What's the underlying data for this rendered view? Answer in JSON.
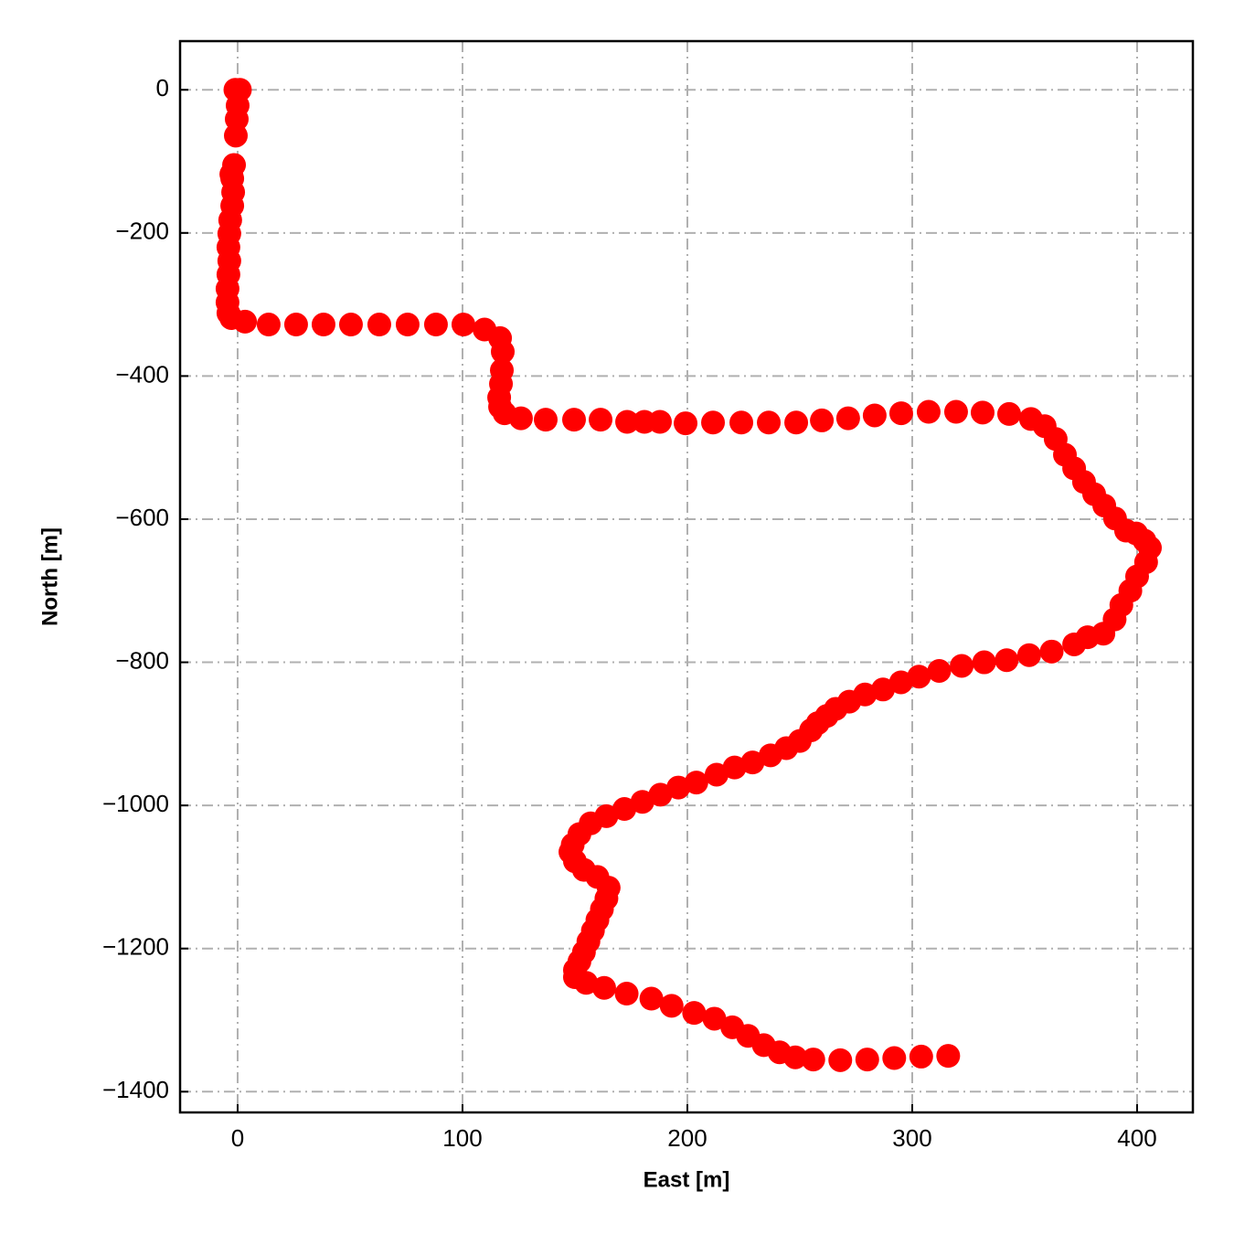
{
  "chart_data": {
    "type": "scatter",
    "xlabel": "East [m]",
    "ylabel": "North [m]",
    "color": "#ff0000",
    "grid": true,
    "xlim": [
      -25.6,
      424.8
    ],
    "ylim": [
      -1429,
      68
    ],
    "xticks": [
      0,
      100,
      200,
      300,
      400
    ],
    "yticks": [
      0,
      {
        "value": -200,
        "label": "−200"
      },
      {
        "value": -400,
        "label": "−400"
      },
      {
        "value": -600,
        "label": "−600"
      },
      {
        "value": -800,
        "label": "−800"
      },
      {
        "value": -1000,
        "label": "−1000"
      },
      {
        "value": -1200,
        "label": "−1200"
      },
      {
        "value": -1400,
        "label": "−1400"
      }
    ],
    "x": [
      -1,
      1,
      0,
      -0.4,
      -0.8,
      -1.6,
      -2.8,
      -2.4,
      -2,
      -2.4,
      -3.3,
      -3.7,
      -4.1,
      -3.7,
      -4.1,
      -4.5,
      -4.5,
      -4.1,
      -2.8,
      3.3,
      13.8,
      26,
      38.2,
      50.4,
      63,
      75.6,
      88.2,
      100.4,
      109.8,
      116.7,
      117.9,
      117.5,
      117.1,
      116.3,
      116.7,
      118.7,
      126,
      137,
      149.6,
      161.4,
      173.2,
      180.9,
      187.8,
      199.2,
      211.4,
      224,
      236.2,
      248.4,
      259.8,
      271.5,
      283.3,
      295.1,
      307.3,
      319.5,
      331.3,
      343.1,
      352.8,
      358.9,
      363.8,
      367.9,
      372,
      376.4,
      380.9,
      385.4,
      390.2,
      395.1,
      399.6,
      403.3,
      405.7,
      404,
      400,
      397,
      393,
      390,
      385,
      378,
      372,
      362,
      352,
      342,
      332,
      322,
      312,
      303,
      295,
      287,
      279,
      272,
      266,
      262,
      258,
      255,
      250,
      244,
      237,
      229,
      221,
      213,
      204,
      196,
      188,
      180,
      172,
      164,
      157,
      152,
      149,
      148,
      150,
      154,
      160,
      165,
      164,
      162,
      160,
      158,
      156,
      154,
      152,
      150,
      150,
      155,
      163,
      173,
      184,
      193,
      203,
      212,
      220,
      227,
      234,
      241,
      248,
      256,
      268,
      280,
      292,
      304,
      316
    ],
    "values": [
      0,
      0,
      -22,
      -41,
      -64,
      -105,
      -118,
      -124,
      -143,
      -162,
      -182,
      -201,
      -220,
      -239,
      -258,
      -278,
      -297,
      -312,
      -319,
      -324,
      -328,
      -328,
      -328,
      -328,
      -328,
      -328,
      -328,
      -328,
      -335,
      -347,
      -366,
      -392,
      -411,
      -430,
      -443,
      -452,
      -459,
      -461,
      -461,
      -461,
      -464,
      -464,
      -464,
      -466,
      -465,
      -465,
      -465,
      -465,
      -462,
      -459,
      -455,
      -452,
      -450,
      -450,
      -451,
      -453,
      -460,
      -470,
      -488,
      -510,
      -529,
      -548,
      -565,
      -581,
      -599,
      -616,
      -620,
      -630,
      -640,
      -660,
      -680,
      -700,
      -720,
      -740,
      -760,
      -765,
      -775,
      -785,
      -790,
      -797,
      -800,
      -805,
      -812,
      -820,
      -828,
      -838,
      -845,
      -855,
      -865,
      -875,
      -885,
      -895,
      -910,
      -920,
      -930,
      -940,
      -947,
      -957,
      -968,
      -975,
      -985,
      -995,
      -1005,
      -1015,
      -1025,
      -1040,
      -1055,
      -1065,
      -1078,
      -1090,
      -1100,
      -1115,
      -1130,
      -1145,
      -1160,
      -1175,
      -1190,
      -1205,
      -1218,
      -1230,
      -1240,
      -1248,
      -1255,
      -1263,
      -1270,
      -1280,
      -1290,
      -1298,
      -1310,
      -1322,
      -1335,
      -1345,
      -1352,
      -1355,
      -1356,
      -1355,
      -1353,
      -1351,
      -1350
    ]
  }
}
